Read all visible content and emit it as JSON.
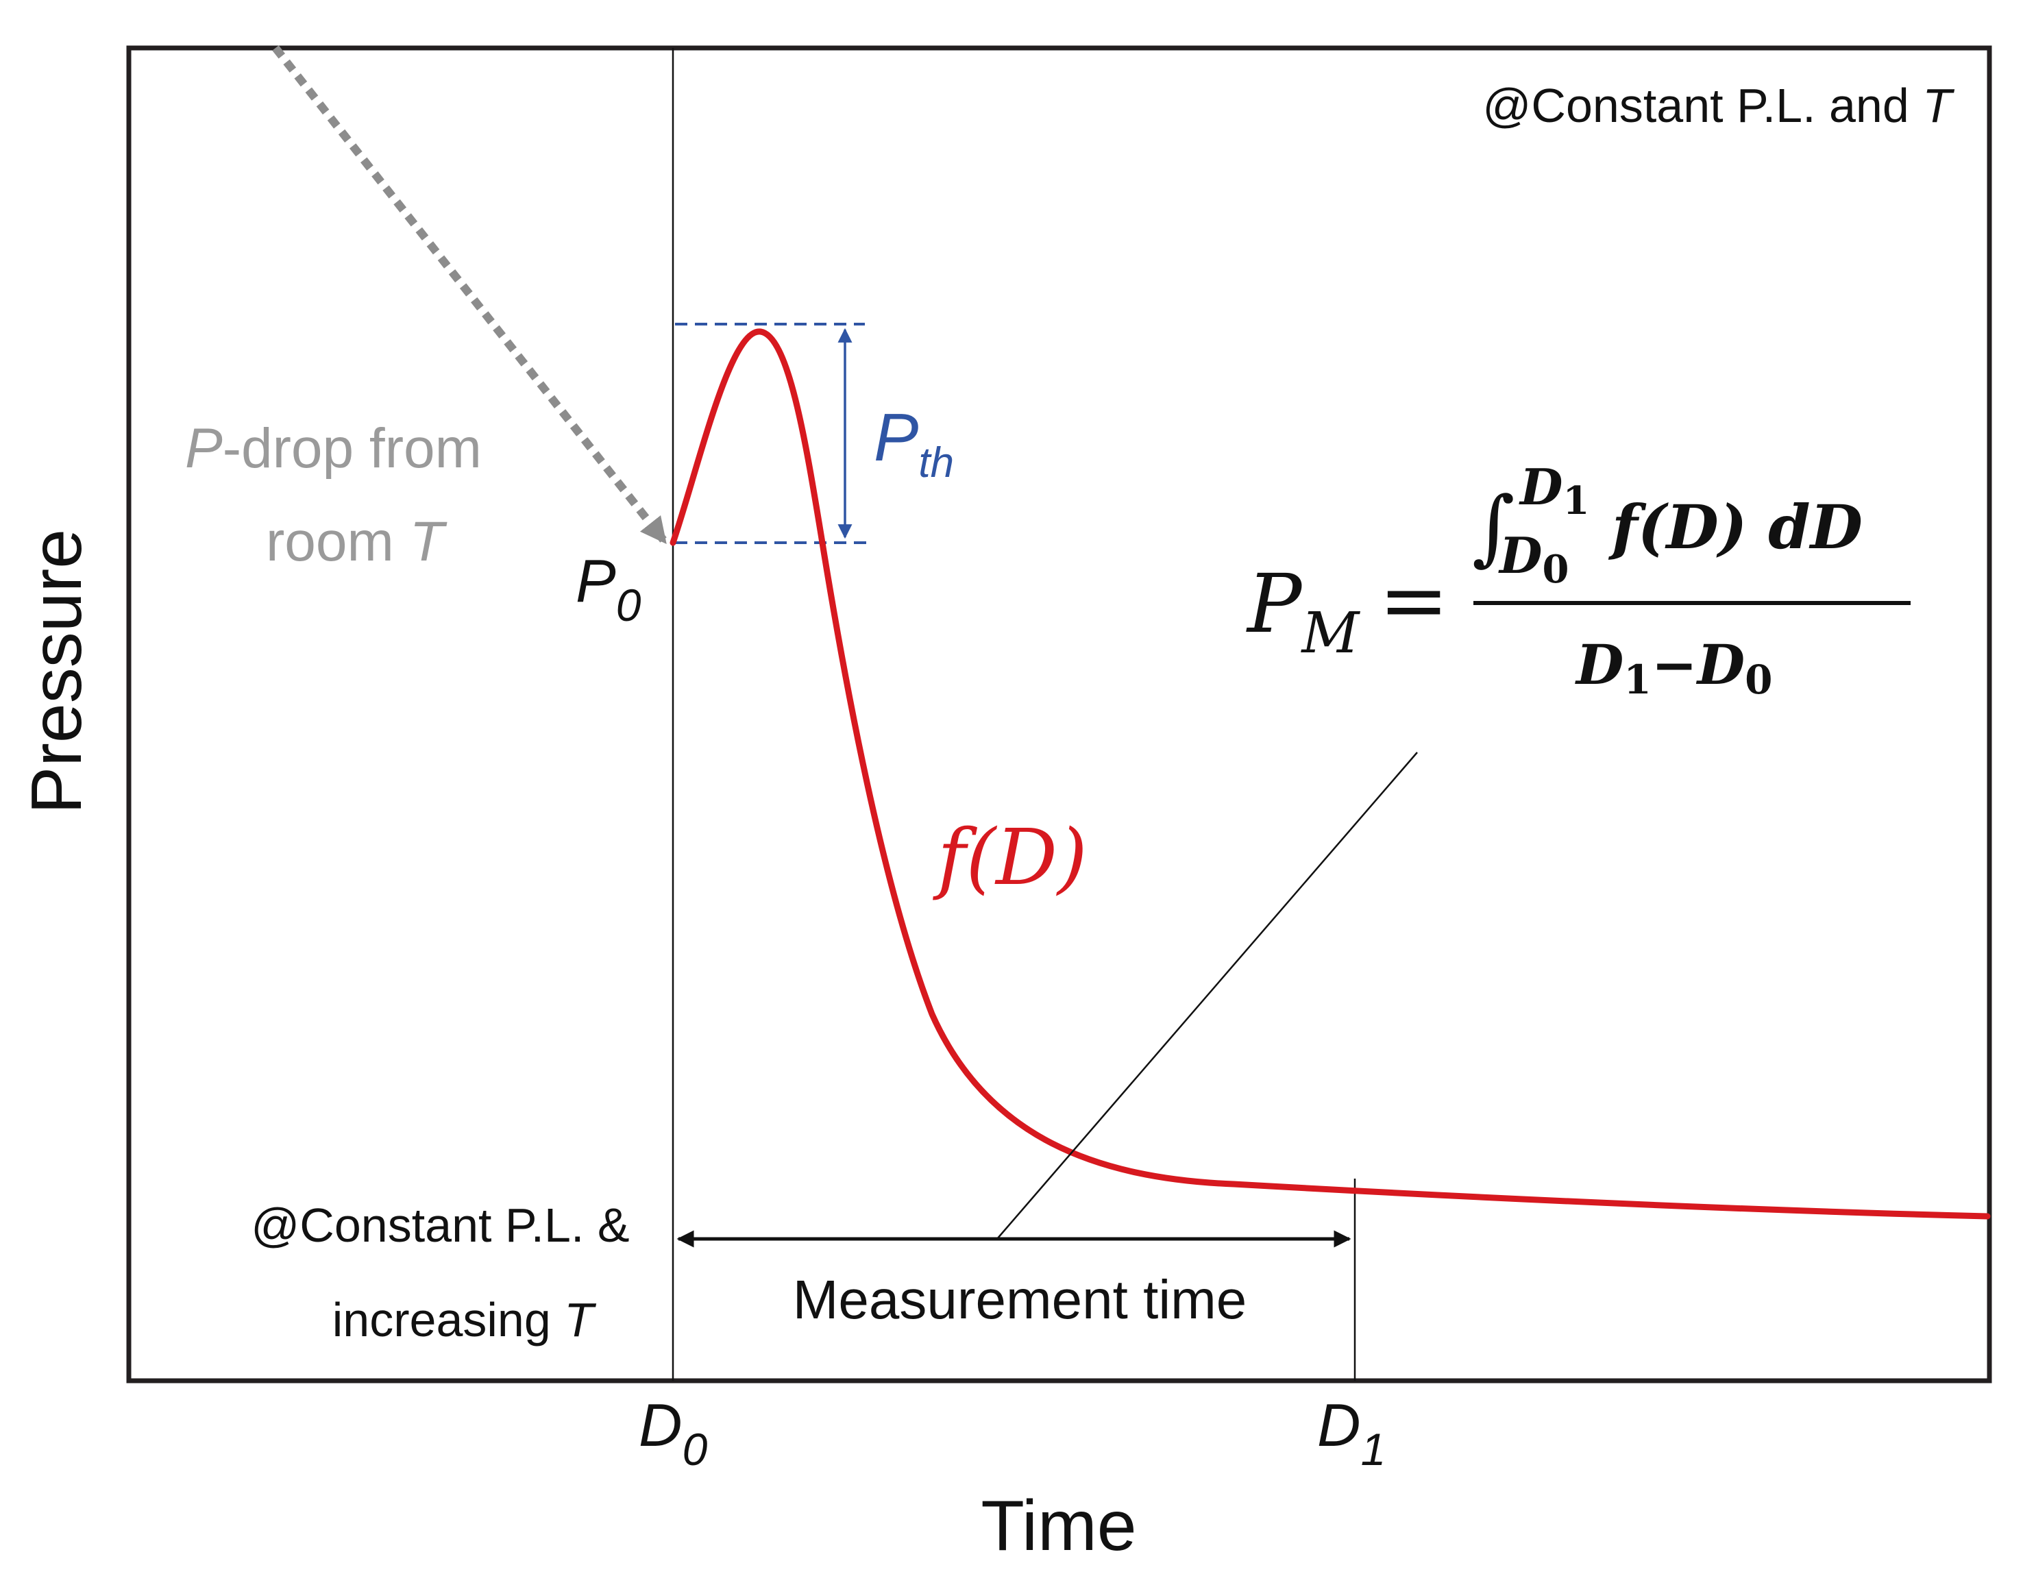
{
  "axes": {
    "y_label": "Pressure",
    "x_label": "Time"
  },
  "corner_note": {
    "prefix": "@Constant P.L. and ",
    "var": "T"
  },
  "side_note": {
    "line1": "@Constant P.L. &",
    "line2_prefix": "increasing ",
    "line2_var": "T"
  },
  "p_drop_label": {
    "line1_var": "P",
    "line1_rest": "-drop from",
    "line2_prefix": "room ",
    "line2_var": "T"
  },
  "p0_label": {
    "base": "P",
    "sub": "0"
  },
  "pth_label": {
    "base": "P",
    "sub": "th"
  },
  "curve_label": "f(D)",
  "formula": {
    "lhs_base": "P",
    "lhs_sub": "M",
    "equals": "=",
    "integral": "∫",
    "upper_base": "D",
    "upper_sub": "1",
    "lower_base": "D",
    "lower_sub": "0",
    "integrand": "f(D) dD",
    "den_a_base": "D",
    "den_a_sub": "1",
    "den_minus": "−",
    "den_b_base": "D",
    "den_b_sub": "0"
  },
  "measurement_label": "Measurement time",
  "d0_tick": {
    "base": "D",
    "sub": "0"
  },
  "d1_tick": {
    "base": "D",
    "sub": "1"
  },
  "colors": {
    "curve": "#d7191f",
    "threshold": "#2f55a4",
    "p_drop": "#8c8c8c",
    "frame": "#231f20",
    "text": "#111111"
  }
}
